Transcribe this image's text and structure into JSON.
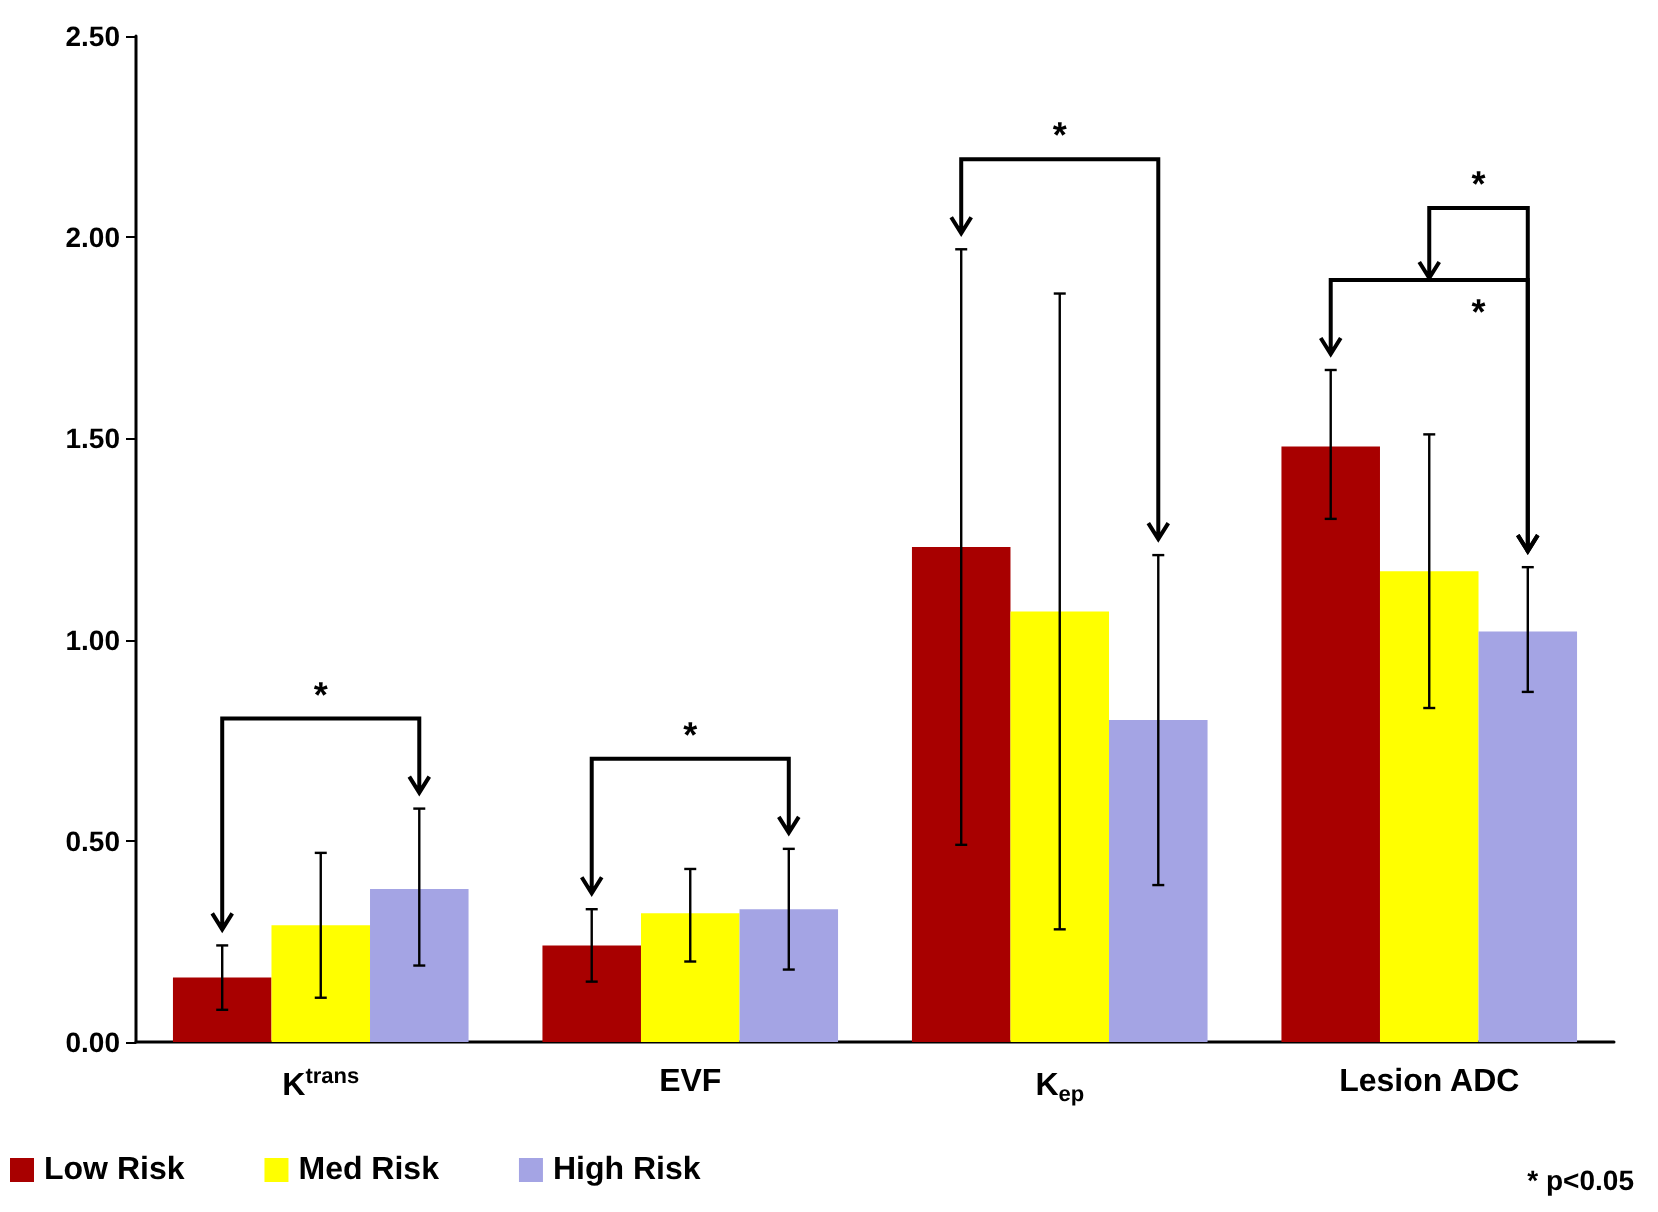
{
  "chart_data": {
    "type": "bar",
    "categories": [
      "K$^{trans}$",
      "EVF",
      "K$_{ep}$",
      "Lesion ADC"
    ],
    "series": [
      {
        "name": "Low Risk",
        "color": "#a80000",
        "values": [
          0.16,
          0.24,
          1.23,
          1.48
        ],
        "errors": [
          [
            0.08,
            0.24
          ],
          [
            0.15,
            0.33
          ],
          [
            0.49,
            1.97
          ],
          [
            1.3,
            1.67
          ]
        ]
      },
      {
        "name": "Med Risk",
        "color": "#ffff00",
        "values": [
          0.29,
          0.32,
          1.07,
          1.17
        ],
        "errors": [
          [
            0.11,
            0.47
          ],
          [
            0.2,
            0.43
          ],
          [
            0.28,
            1.86
          ],
          [
            0.83,
            1.51
          ]
        ]
      },
      {
        "name": "High Risk",
        "color": "#a4a4e4",
        "values": [
          0.38,
          0.33,
          0.8,
          1.02
        ],
        "errors": [
          [
            0.19,
            0.58
          ],
          [
            0.18,
            0.48
          ],
          [
            0.39,
            1.21
          ],
          [
            0.87,
            1.18
          ]
        ]
      }
    ],
    "ylim": [
      0,
      2.5
    ],
    "yticks": [
      {
        "value": 0,
        "label": "0.00"
      },
      {
        "value": 0.5,
        "label": "0.50"
      },
      {
        "value": 1,
        "label": "1.00"
      },
      {
        "value": 1.5,
        "label": "1.50"
      },
      {
        "value": 2,
        "label": "2.00"
      },
      {
        "value": 2.5,
        "label": "2.50"
      }
    ],
    "grid": false,
    "legend": "bottom",
    "annotations": [
      "*",
      "*",
      "*",
      "*",
      "*",
      "* p<0.05"
    ]
  }
}
